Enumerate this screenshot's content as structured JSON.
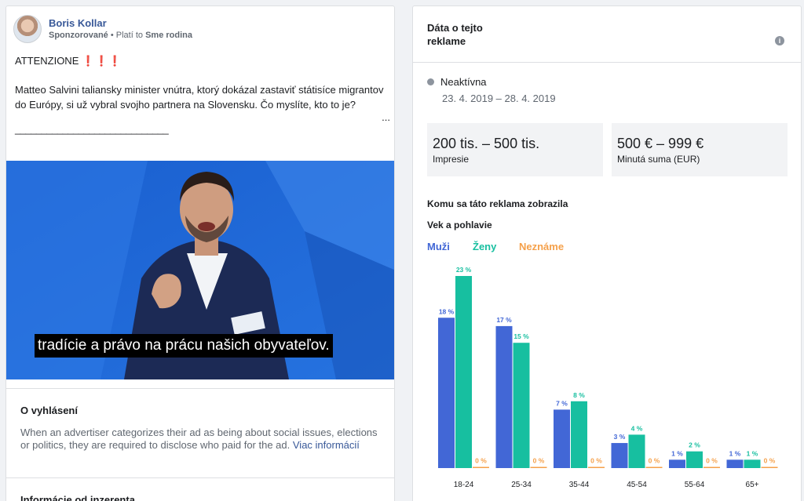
{
  "ad": {
    "advertiser": "Boris Kollar",
    "sponsored": "Sponzorované",
    "paid_prefix": "• Platí to",
    "paid_by": "Sme rodina",
    "headline": "ATTENZIONE",
    "headline_emoji": "❗❗❗",
    "body": "Matteo Salvini taliansky minister vnútra, ktorý dokázal zastaviť státisíce migrantov do Európy, si už vybral svojho partnera na Slovensku. Čo myslíte, kto to je?",
    "more": "...",
    "underline": "_____________________________",
    "video_subtitle": "tradície a právo na prácu našich obyvateľov."
  },
  "about": {
    "title": "O vyhlásení",
    "text": "When an advertiser categorizes their ad as being about social issues, elections or politics, they are required to disclose who paid for the ad.",
    "link": "Viac informácií"
  },
  "advertiser_info": {
    "title": "Informácie od inzerenta"
  },
  "data_panel": {
    "title": "Dáta o tejto reklame",
    "info_icon": "i",
    "status": "Neaktívna",
    "date_range": "23. 4. 2019 – 28. 4. 2019",
    "impressions_value": "200 tis. – 500 tis.",
    "impressions_label": "Impresie",
    "spend_value": "500 € – 999 €",
    "spend_label": "Minutá suma (EUR)",
    "reach_title": "Komu sa táto reklama zobrazila",
    "age_title": "Vek a pohlavie",
    "legend": {
      "men": "Muži",
      "women": "Ženy",
      "unknown": "Neznáme"
    },
    "colors": {
      "men": "#4267d6",
      "women": "#17bfa0",
      "unknown": "#f5a04a"
    }
  },
  "chart_data": {
    "type": "bar",
    "categories": [
      "18-24",
      "25-34",
      "35-44",
      "45-54",
      "55-64",
      "65+"
    ],
    "series": [
      {
        "name": "Muži",
        "values": [
          18,
          17,
          7,
          3,
          1,
          1
        ]
      },
      {
        "name": "Ženy",
        "values": [
          23,
          15,
          8,
          4,
          2,
          1
        ]
      },
      {
        "name": "Neznáme",
        "values": [
          0,
          0,
          0,
          0,
          0,
          0
        ]
      }
    ],
    "data_labels": [
      [
        "18 %",
        "17 %",
        "7 %",
        "3 %",
        "1 %",
        "1 %"
      ],
      [
        "23 %",
        "15 %",
        "8 %",
        "4 %",
        "2 %",
        "1 %"
      ],
      [
        "0 %",
        "0 %",
        "0 %",
        "0 %",
        "0 %",
        "0 %"
      ]
    ],
    "ylim": [
      0,
      23
    ]
  }
}
